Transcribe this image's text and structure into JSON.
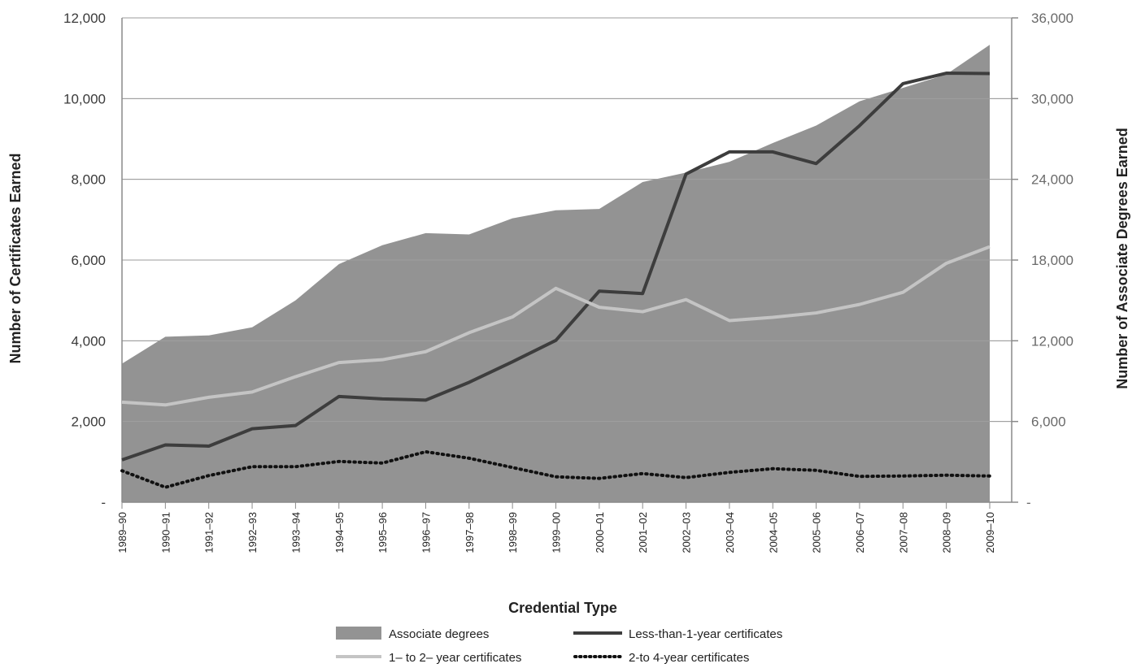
{
  "chart_data": {
    "type": "line",
    "title": "",
    "xlabel": "Credential Type",
    "ylabel_left": "Number of Certificates Earned",
    "ylabel_right": "Number of Associate Degrees Earned",
    "ylim_left": [
      0,
      12000
    ],
    "ylim_right": [
      0,
      36000
    ],
    "yticks_left": [
      "-",
      "2,000",
      "4,000",
      "6,000",
      "8,000",
      "10,000",
      "12,000"
    ],
    "yticks_right": [
      "-",
      "6,000",
      "12,000",
      "18,000",
      "24,000",
      "30,000",
      "36,000"
    ],
    "grid": true,
    "legend_position": "bottom",
    "categories": [
      "1989–90",
      "1990–91",
      "1991–92",
      "1992–93",
      "1993–94",
      "1994–95",
      "1995–96",
      "1996–97",
      "1997–98",
      "1998–99",
      "1999–00",
      "2000–01",
      "2001–02",
      "2002–03",
      "2003–04",
      "2004–05",
      "2005–06",
      "2006–07",
      "2007–08",
      "2008–09",
      "2009–10"
    ],
    "series": [
      {
        "name": "Associate degrees",
        "kind": "area",
        "axis": "right",
        "color": "#939393",
        "values": [
          10300,
          12300,
          12400,
          13000,
          15000,
          17700,
          19100,
          20000,
          19900,
          21100,
          21700,
          21800,
          23800,
          24500,
          25300,
          26700,
          28000,
          29800,
          30800,
          31800,
          34000
        ]
      },
      {
        "name": "Less-than-1-year certificates",
        "kind": "line",
        "axis": "left",
        "color": "#3d3d3d",
        "values": [
          1050,
          1420,
          1390,
          1820,
          1900,
          2620,
          2560,
          2530,
          2970,
          3480,
          4010,
          5230,
          5170,
          8130,
          8680,
          8680,
          8390,
          9330,
          10370,
          10630,
          10620
        ]
      },
      {
        "name": "1– to 2– year certificates",
        "kind": "line",
        "axis": "left",
        "color": "#c4c4c4",
        "values": [
          2480,
          2410,
          2600,
          2730,
          3110,
          3460,
          3530,
          3730,
          4200,
          4590,
          5300,
          4830,
          4720,
          5020,
          4500,
          4580,
          4690,
          4900,
          5200,
          5920,
          6330
        ]
      },
      {
        "name": "2-to 4-year certificates",
        "kind": "line",
        "axis": "left",
        "color": "#111111",
        "dashed": true,
        "values": [
          780,
          370,
          660,
          880,
          880,
          1010,
          970,
          1250,
          1090,
          860,
          630,
          590,
          710,
          610,
          740,
          830,
          790,
          640,
          650,
          670,
          650
        ]
      }
    ]
  }
}
